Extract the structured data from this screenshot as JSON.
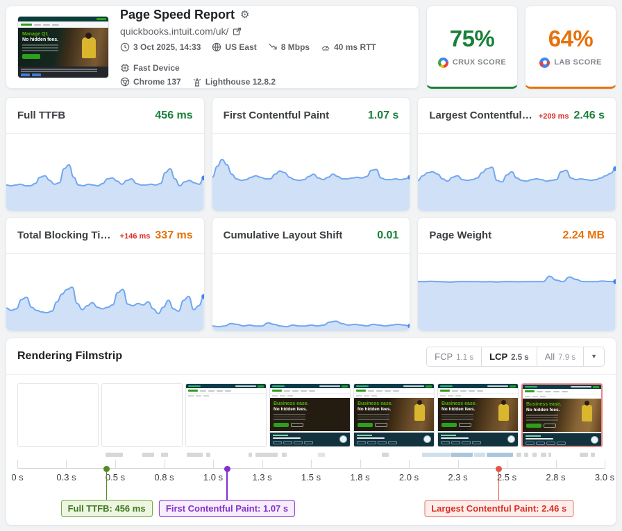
{
  "header": {
    "title": "Page Speed Report",
    "url": "quickbooks.intuit.com/uk/",
    "meta_row1": [
      {
        "icon": "clock-icon",
        "label": "3 Oct 2025, 14:33"
      },
      {
        "icon": "globe-icon",
        "label": "US East"
      },
      {
        "icon": "network-speed-icon",
        "label": "8 Mbps"
      },
      {
        "icon": "latency-gauge-icon",
        "label": "40 ms RTT"
      },
      {
        "icon": "device-chip-icon",
        "label": "Fast Device"
      }
    ],
    "meta_row2": [
      {
        "icon": "chrome-icon",
        "label": "Chrome 137"
      },
      {
        "icon": "lighthouse-icon",
        "label": "Lighthouse 12.8.2"
      }
    ],
    "thumbnail": {
      "headline": "Manage Q1",
      "subheadline": "No hidden fees."
    }
  },
  "scores": {
    "crux": {
      "value": "75%",
      "label": "CRUX SCORE",
      "color": "#188038"
    },
    "lab": {
      "value": "64%",
      "label": "LAB SCORE",
      "color": "#e8710a"
    }
  },
  "metrics": [
    {
      "title": "Full TTFB",
      "delta": "",
      "value": "456 ms",
      "value_color": "#188038",
      "sparkline": [
        0.34,
        0.33,
        0.34,
        0.35,
        0.33,
        0.33,
        0.36,
        0.44,
        0.46,
        0.4,
        0.35,
        0.37,
        0.55,
        0.6,
        0.44,
        0.34,
        0.33,
        0.35,
        0.34,
        0.33,
        0.36,
        0.42,
        0.43,
        0.39,
        0.35,
        0.4,
        0.42,
        0.36,
        0.34,
        0.34,
        0.35,
        0.34,
        0.36,
        0.5,
        0.55,
        0.42,
        0.33,
        0.38,
        0.4,
        0.37,
        0.35,
        0.43
      ]
    },
    {
      "title": "First Contentful Paint",
      "delta": "",
      "value": "1.07 s",
      "value_color": "#188038",
      "sparkline": [
        0.44,
        0.58,
        0.67,
        0.6,
        0.48,
        0.42,
        0.4,
        0.41,
        0.44,
        0.46,
        0.44,
        0.42,
        0.42,
        0.48,
        0.52,
        0.5,
        0.44,
        0.41,
        0.4,
        0.41,
        0.45,
        0.48,
        0.43,
        0.41,
        0.44,
        0.48,
        0.45,
        0.42,
        0.42,
        0.43,
        0.44,
        0.43,
        0.45,
        0.53,
        0.54,
        0.43,
        0.41,
        0.41,
        0.42,
        0.41,
        0.42,
        0.44
      ]
    },
    {
      "title": "Largest Contentful Paint",
      "delta": "+209 ms",
      "value": "2.46 s",
      "value_color": "#188038",
      "sparkline": [
        0.4,
        0.46,
        0.5,
        0.51,
        0.48,
        0.42,
        0.39,
        0.44,
        0.46,
        0.41,
        0.4,
        0.41,
        0.43,
        0.5,
        0.55,
        0.57,
        0.4,
        0.38,
        0.47,
        0.51,
        0.43,
        0.4,
        0.39,
        0.41,
        0.42,
        0.41,
        0.39,
        0.4,
        0.41,
        0.51,
        0.53,
        0.43,
        0.41,
        0.42,
        0.41,
        0.4,
        0.41,
        0.43,
        0.46,
        0.49,
        0.55
      ]
    },
    {
      "title": "Total Blocking Time",
      "delta": "+146 ms",
      "value": "337 ms",
      "value_color": "#e8710a",
      "sparkline": [
        0.3,
        0.27,
        0.29,
        0.41,
        0.44,
        0.31,
        0.27,
        0.25,
        0.24,
        0.26,
        0.38,
        0.48,
        0.54,
        0.57,
        0.36,
        0.28,
        0.33,
        0.37,
        0.31,
        0.29,
        0.31,
        0.34,
        0.5,
        0.54,
        0.35,
        0.33,
        0.36,
        0.34,
        0.38,
        0.29,
        0.23,
        0.31,
        0.4,
        0.29,
        0.26,
        0.4,
        0.45,
        0.28,
        0.33,
        0.45
      ]
    },
    {
      "title": "Cumulative Layout Shift",
      "delta": "",
      "value": "0.01",
      "value_color": "#188038",
      "sparkline": [
        0.07,
        0.06,
        0.07,
        0.1,
        0.09,
        0.07,
        0.08,
        0.07,
        0.07,
        0.11,
        0.09,
        0.07,
        0.06,
        0.08,
        0.07,
        0.07,
        0.08,
        0.07,
        0.08,
        0.12,
        0.13,
        0.1,
        0.08,
        0.09,
        0.08,
        0.07,
        0.09,
        0.08,
        0.07,
        0.08,
        0.09,
        0.08,
        0.07
      ]
    },
    {
      "title": "Page Weight",
      "delta": "",
      "value": "2.24 MB",
      "value_color": "#e8710a",
      "sparkline": [
        0.64,
        0.64,
        0.645,
        0.64,
        0.638,
        0.635,
        0.64,
        0.642,
        0.64,
        0.64,
        0.638,
        0.64,
        0.636,
        0.64,
        0.642,
        0.638,
        0.64,
        0.64,
        0.641,
        0.64,
        0.71,
        0.66,
        0.64,
        0.7,
        0.67,
        0.642,
        0.64,
        0.64,
        0.648,
        0.643,
        0.64
      ]
    }
  ],
  "sparkline_style": {
    "line": "#71a7f0",
    "fill": "#cfe0f7",
    "dot": "#4285f4"
  },
  "filmstrip": {
    "title": "Rendering Filmstrip",
    "controls": [
      {
        "label": "FCP",
        "value": "1.1 s",
        "active": false
      },
      {
        "label": "LCP",
        "value": "2.5 s",
        "active": true
      },
      {
        "label": "All",
        "value": "7.9 s",
        "active": false
      }
    ],
    "caret": "▼",
    "frame_text": {
      "headline": "Business ease.",
      "subheadline": "No hidden fees."
    },
    "frames": [
      {
        "variant": "blank"
      },
      {
        "variant": "blank"
      },
      {
        "variant": "nav"
      },
      {
        "variant": "dark"
      },
      {
        "variant": "image"
      },
      {
        "variant": "image"
      },
      {
        "variant": "image",
        "lcp_highlight": true
      }
    ],
    "waterfall": [
      {
        "x": 15.0,
        "w": 3.0,
        "c": "#d5d7d9"
      },
      {
        "x": 21.3,
        "w": 2.0,
        "c": "#d5d7d9"
      },
      {
        "x": 24.5,
        "w": 1.2,
        "c": "#d5d7d9"
      },
      {
        "x": 28.8,
        "w": 2.8,
        "c": "#d5d7d9"
      },
      {
        "x": 32.1,
        "w": 0.8,
        "c": "#d5d7d9"
      },
      {
        "x": 39.4,
        "w": 0.6,
        "c": "#d5d7d9"
      },
      {
        "x": 40.6,
        "w": 3.7,
        "c": "#d5d7d9"
      },
      {
        "x": 45.0,
        "w": 0.9,
        "c": "#d5d7d9"
      },
      {
        "x": 51.2,
        "w": 1.2,
        "c": "#e2e4e6"
      },
      {
        "x": 62.0,
        "w": 1.2,
        "c": "#d5d7d9"
      },
      {
        "x": 68.9,
        "w": 4.7,
        "c": "#cfdfec"
      },
      {
        "x": 73.8,
        "w": 3.8,
        "c": "#a9c6dc"
      },
      {
        "x": 77.8,
        "w": 1.9,
        "c": "#cfdfec"
      },
      {
        "x": 79.9,
        "w": 4.5,
        "c": "#a9c6dc"
      },
      {
        "x": 85.0,
        "w": 0.8,
        "c": "#d5d7d9"
      },
      {
        "x": 86.3,
        "w": 0.7,
        "c": "#d5d7d9"
      },
      {
        "x": 87.7,
        "w": 0.7,
        "c": "#d5d7d9"
      },
      {
        "x": 89.1,
        "w": 1.0,
        "c": "#d5d7d9"
      },
      {
        "x": 90.4,
        "w": 0.5,
        "c": "#d5d7d9"
      },
      {
        "x": 95.8,
        "w": 1.4,
        "c": "#d5d7d9"
      },
      {
        "x": 97.6,
        "w": 0.7,
        "c": "#d5d7d9"
      }
    ],
    "timeline": {
      "ticks": [
        "0 s",
        "0.3 s",
        "0.5 s",
        "0.8 s",
        "1.0 s",
        "1.3 s",
        "1.5 s",
        "1.8 s",
        "2.0 s",
        "2.3 s",
        "2.5 s",
        "2.8 s",
        "3.0 s"
      ],
      "markers": [
        {
          "label": "Full TTFB: 456 ms",
          "pct": 15.2,
          "dot": "#538b23",
          "border": "#74a843",
          "bg": "#eef5e2",
          "text": "#3c7a1e"
        },
        {
          "label": "First Contentful Paint: 1.07 s",
          "pct": 35.7,
          "dot": "#8430ce",
          "border": "#8430ce",
          "bg": "#f6eefb",
          "text": "#8430ce"
        },
        {
          "label": "Largest Contentful Paint: 2.46 s",
          "pct": 82.0,
          "dot": "#e25544",
          "border": "#e57368",
          "bg": "#fdeeec",
          "text": "#d93025"
        }
      ]
    }
  }
}
